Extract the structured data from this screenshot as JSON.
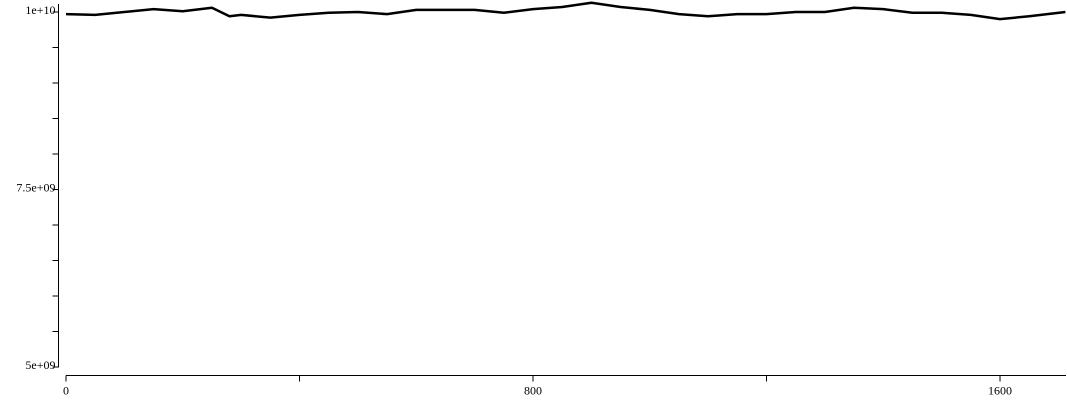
{
  "chart_data": {
    "type": "line",
    "x": [
      0,
      50,
      100,
      150,
      200,
      250,
      280,
      300,
      350,
      400,
      450,
      500,
      550,
      600,
      650,
      700,
      750,
      800,
      850,
      900,
      950,
      1000,
      1050,
      1100,
      1150,
      1200,
      1250,
      1300,
      1350,
      1400,
      1450,
      1500,
      1550,
      1600,
      1650,
      1712
    ],
    "series": [
      {
        "color": "#000000",
        "values": [
          9970000000,
          9960000000,
          10000000000,
          10040000000,
          10010000000,
          10060000000,
          9940000000,
          9960000000,
          9920000000,
          9960000000,
          9990000000,
          10000000000,
          9970000000,
          10030000000,
          10030000000,
          10030000000,
          9990000000,
          10040000000,
          10070000000,
          10130000000,
          10070000000,
          10030000000,
          9970000000,
          9940000000,
          9970000000,
          9970000000,
          10000000000,
          10000000000,
          10060000000,
          10040000000,
          9990000000,
          9990000000,
          9960000000,
          9900000000,
          9940000000,
          10000000000
        ]
      }
    ],
    "xlim": [
      0,
      1712
    ],
    "xticks": [
      0,
      800,
      1600
    ],
    "x_minor_ticks": [
      400,
      1200
    ],
    "ylim": [
      5000000000,
      10100000000
    ],
    "yticks": [
      {
        "value": 5000000000,
        "label": "5e+09"
      },
      {
        "value": 7500000000,
        "label": "7.5e+09"
      },
      {
        "value": 10000000000,
        "label": "1e+10"
      }
    ],
    "y_minor_ticks": [
      5500000000,
      6000000000,
      6500000000,
      7000000000,
      8000000000,
      8500000000,
      9000000000,
      9500000000
    ]
  }
}
